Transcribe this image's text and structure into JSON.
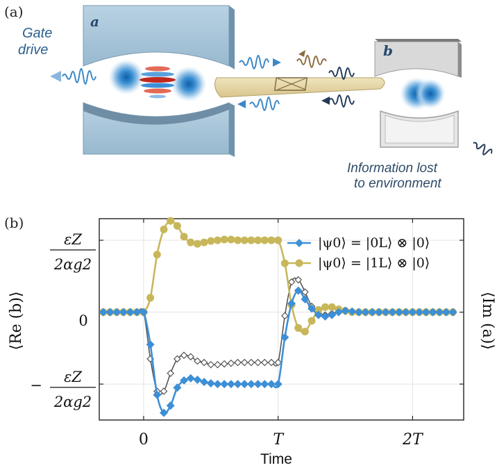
{
  "panel_a": {
    "label": "(a)",
    "gate_drive_line1": "Gate",
    "gate_drive_line2": "drive",
    "cavity_a_letter": "a",
    "cavity_b_letter": "b",
    "info_line1": "Information lost",
    "info_line2": "to environment",
    "colors": {
      "cavity_a": "#a9c6da",
      "cavity_b": "#d4d4d4",
      "wave_blue": "#3b87c9",
      "wave_dark": "#233a57",
      "wave_brown": "#8c6d3f",
      "coupler": "#e4d5a6"
    }
  },
  "panel_b": {
    "label": "(b)",
    "ylabel_left": "⟨Re (b)⟩",
    "ylabel_right": "⟨Im (a)⟩",
    "ytick_top_num": "εZ",
    "ytick_top_den": "2αg2",
    "ytick_zero": "0",
    "ytick_bottom_sign": "−",
    "ytick_bottom_num": "εZ",
    "ytick_bottom_den": "2αg2"
  },
  "chart_data": {
    "type": "line",
    "xlabel": "Time",
    "x_ticks": [
      "0",
      "T",
      "2T"
    ],
    "x_tick_values": [
      0,
      1,
      2
    ],
    "xlim": [
      -0.33,
      2.38
    ],
    "ylim": [
      -1.5,
      1.3
    ],
    "y_tick_values": [
      -1,
      0,
      1
    ],
    "grid": true,
    "legend_position": "top-right",
    "series": [
      {
        "name": "|ψ0⟩ = |0L⟩ ⊗ |0⟩",
        "color": "#3d8fd6",
        "marker": "diamond",
        "x": [
          -0.3,
          -0.25,
          -0.2,
          -0.15,
          -0.1,
          -0.05,
          0,
          0.05,
          0.1,
          0.15,
          0.2,
          0.25,
          0.3,
          0.35,
          0.4,
          0.45,
          0.5,
          0.55,
          0.6,
          0.65,
          0.7,
          0.75,
          0.8,
          0.85,
          0.9,
          0.95,
          1.0,
          1.05,
          1.1,
          1.15,
          1.2,
          1.25,
          1.3,
          1.35,
          1.4,
          1.45,
          1.5,
          1.55,
          1.6,
          1.65,
          1.7,
          1.75,
          1.8,
          1.85,
          1.9,
          1.95,
          2.0,
          2.05,
          2.1,
          2.15,
          2.2,
          2.25,
          2.3
        ],
        "y": [
          0,
          0,
          0,
          0,
          0,
          0,
          0,
          -0.45,
          -1.15,
          -1.4,
          -1.3,
          -1.05,
          -0.95,
          -0.92,
          -0.94,
          -0.97,
          -0.99,
          -1.0,
          -1.0,
          -1.0,
          -1.0,
          -1.0,
          -1.0,
          -1.0,
          -1.0,
          -1.0,
          -1.0,
          -0.35,
          0.12,
          0.3,
          0.18,
          0.05,
          -0.04,
          -0.06,
          -0.04,
          0.0,
          0.02,
          0.01,
          0.0,
          0,
          0,
          0,
          0,
          0,
          0,
          0,
          0,
          0,
          0,
          0,
          0,
          0,
          0
        ]
      },
      {
        "name": "|ψ0⟩ = |1L⟩ ⊗ |0⟩",
        "color": "#c8b75a",
        "marker": "circle",
        "x": [
          -0.3,
          -0.25,
          -0.2,
          -0.15,
          -0.1,
          -0.05,
          0,
          0.05,
          0.1,
          0.15,
          0.2,
          0.25,
          0.3,
          0.35,
          0.4,
          0.45,
          0.5,
          0.55,
          0.6,
          0.65,
          0.7,
          0.75,
          0.8,
          0.85,
          0.9,
          0.95,
          1.0,
          1.05,
          1.1,
          1.15,
          1.2,
          1.25,
          1.3,
          1.35,
          1.4,
          1.45,
          1.5,
          1.55,
          1.6,
          1.65,
          1.7,
          1.75,
          1.8,
          1.85,
          1.9,
          1.95,
          2.0,
          2.05,
          2.1,
          2.15,
          2.2,
          2.25,
          2.3
        ],
        "y": [
          0,
          0,
          0,
          0,
          0,
          0,
          0,
          0.2,
          0.8,
          1.15,
          1.27,
          1.2,
          1.05,
          0.97,
          0.95,
          0.97,
          0.99,
          1.0,
          1.01,
          1.01,
          1.0,
          1.0,
          1.0,
          1.0,
          1.0,
          1.0,
          1.0,
          0.68,
          0.1,
          -0.22,
          -0.27,
          -0.12,
          0.03,
          0.07,
          0.07,
          0.04,
          0.02,
          0.0,
          0,
          0,
          0,
          0,
          0,
          0,
          0,
          0,
          0,
          0,
          0,
          0,
          0,
          0,
          0
        ]
      },
      {
        "name": "",
        "color": "#555555",
        "marker": "open-diamond",
        "x": [
          -0.3,
          -0.25,
          -0.2,
          -0.15,
          -0.1,
          -0.05,
          0,
          0.05,
          0.1,
          0.15,
          0.2,
          0.25,
          0.3,
          0.35,
          0.4,
          0.45,
          0.5,
          0.55,
          0.6,
          0.65,
          0.7,
          0.75,
          0.8,
          0.85,
          0.9,
          0.95,
          1.0,
          1.05,
          1.1,
          1.15,
          1.2,
          1.25,
          1.3,
          1.35,
          1.4,
          1.45,
          1.5,
          1.55,
          1.6,
          1.65,
          1.7,
          1.75,
          1.8,
          1.85,
          1.9,
          1.95,
          2.0,
          2.05,
          2.1,
          2.15,
          2.2,
          2.25,
          2.3
        ],
        "y": [
          0,
          0,
          0,
          0,
          0,
          0,
          0,
          -0.65,
          -1.1,
          -1.1,
          -0.85,
          -0.65,
          -0.6,
          -0.62,
          -0.68,
          -0.7,
          -0.73,
          -0.73,
          -0.72,
          -0.71,
          -0.7,
          -0.7,
          -0.7,
          -0.7,
          -0.7,
          -0.7,
          -0.7,
          -0.05,
          0.42,
          0.45,
          0.28,
          0.08,
          -0.02,
          -0.04,
          -0.02,
          0.0,
          0.01,
          0.0,
          0,
          0,
          0,
          0,
          0,
          0,
          0,
          0,
          0,
          0,
          0,
          0,
          0,
          0,
          0
        ]
      }
    ]
  }
}
